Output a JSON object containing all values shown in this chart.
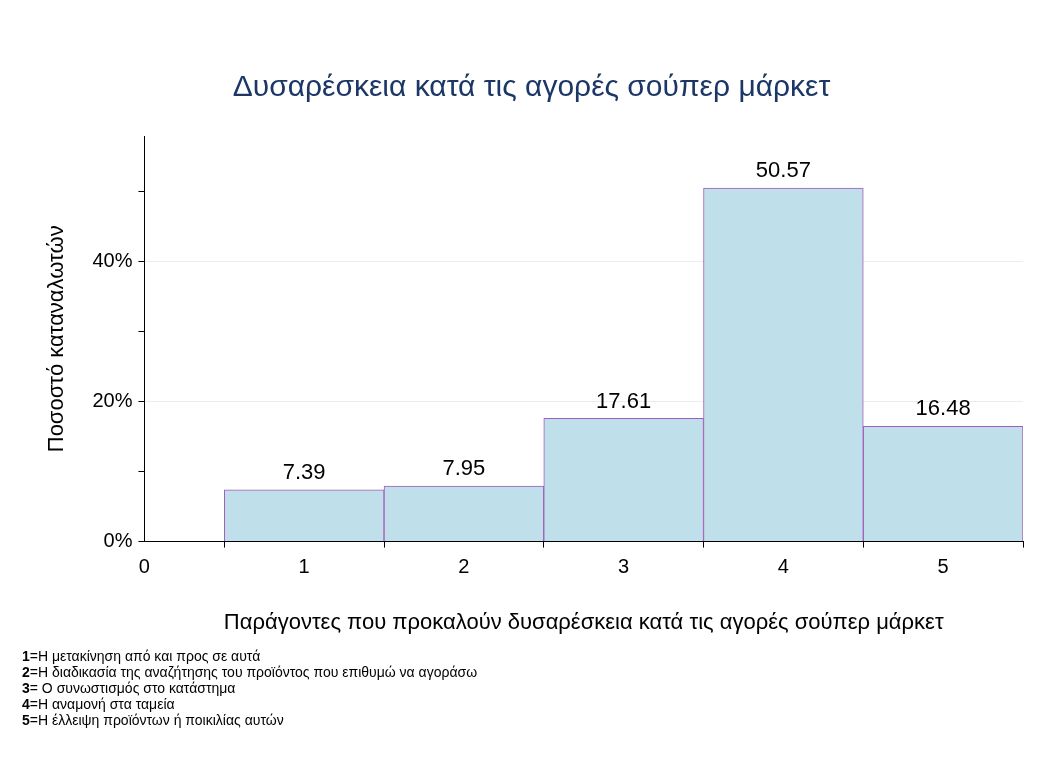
{
  "chart_data": {
    "type": "bar",
    "title": "Δυσαρέσκεια κατά τις αγορές σούπερ μάρκετ",
    "xlabel": "Παράγοντες που προκαλούν δυσαρέσκεια κατά τις αγορές σούπερ μάρκετ",
    "ylabel": "Ποσοστό καταναλωτών",
    "x": [
      1,
      2,
      3,
      4,
      5
    ],
    "values": [
      7.39,
      7.95,
      17.61,
      50.57,
      16.48
    ],
    "color": "#bfe0ea",
    "data_labels": true,
    "xlim": [
      0,
      5.5
    ],
    "xticks": [
      0,
      1,
      2,
      3,
      4,
      5
    ],
    "ylim": [
      0,
      58
    ],
    "yticks": [
      {
        "value": 0,
        "label": "0%"
      },
      {
        "value": 10,
        "label": null
      },
      {
        "value": 20,
        "label": "20%"
      },
      {
        "value": 30,
        "label": null
      },
      {
        "value": 40,
        "label": "40%"
      },
      {
        "value": 50,
        "label": null
      }
    ],
    "grid": "y",
    "annotations": [
      "1=Η μετακίνηση από και προς σε αυτά",
      "2=Η διαδικασία της αναζήτησης του προϊόντος που επιθυμώ να αγοράσω",
      "3= Ο συνωστισμός στο κατάστημα",
      "4=Η αναμονή στα ταμεία",
      "5=Η έλλειψη προϊόντων ή ποικιλίας αυτών"
    ]
  }
}
